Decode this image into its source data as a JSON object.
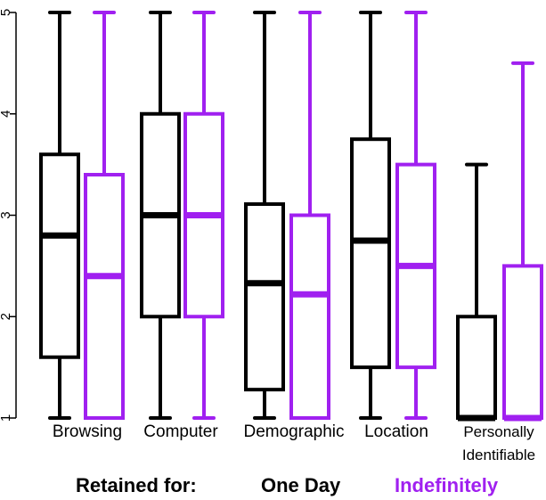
{
  "chart_data": {
    "type": "boxplot",
    "ylim": [
      1,
      5
    ],
    "yticks": [
      "1",
      "2",
      "3",
      "4",
      "5"
    ],
    "categories": [
      "Browsing",
      "Computer",
      "Demographic",
      "Location",
      "Personally Identifiable"
    ],
    "category_lines": [
      [
        "Browsing"
      ],
      [
        "Computer"
      ],
      [
        "Demographic"
      ],
      [
        "Location"
      ],
      [
        "Personally",
        "Identifiable"
      ]
    ],
    "legend": {
      "title": "Retained for:",
      "items": [
        {
          "name": "One Day",
          "color": "#000000"
        },
        {
          "name": "Indefinitely",
          "color": "#a020f0"
        }
      ]
    },
    "series": [
      {
        "name": "One Day",
        "color": "#000000",
        "boxes": [
          {
            "min": 1,
            "q1": 1.6,
            "median": 2.8,
            "q3": 3.6,
            "max": 5
          },
          {
            "min": 1,
            "q1": 2.0,
            "median": 3.0,
            "q3": 4.0,
            "max": 5
          },
          {
            "min": 1,
            "q1": 1.28,
            "median": 2.33,
            "q3": 3.11,
            "max": 5
          },
          {
            "min": 1,
            "q1": 1.5,
            "median": 2.75,
            "q3": 3.75,
            "max": 5
          },
          {
            "min": 1,
            "q1": 1.0,
            "median": 1.0,
            "q3": 2.0,
            "max": 3.5
          }
        ]
      },
      {
        "name": "Indefinitely",
        "color": "#a020f0",
        "boxes": [
          {
            "min": 1,
            "q1": 1.0,
            "median": 2.4,
            "q3": 3.4,
            "max": 5
          },
          {
            "min": 1,
            "q1": 2.0,
            "median": 3.0,
            "q3": 4.0,
            "max": 5
          },
          {
            "min": 1,
            "q1": 1.0,
            "median": 2.22,
            "q3": 3.0,
            "max": 5
          },
          {
            "min": 1,
            "q1": 1.5,
            "median": 2.5,
            "q3": 3.5,
            "max": 5
          },
          {
            "min": 1,
            "q1": 1.0,
            "median": 1.0,
            "q3": 2.5,
            "max": 4.5
          }
        ]
      }
    ]
  }
}
